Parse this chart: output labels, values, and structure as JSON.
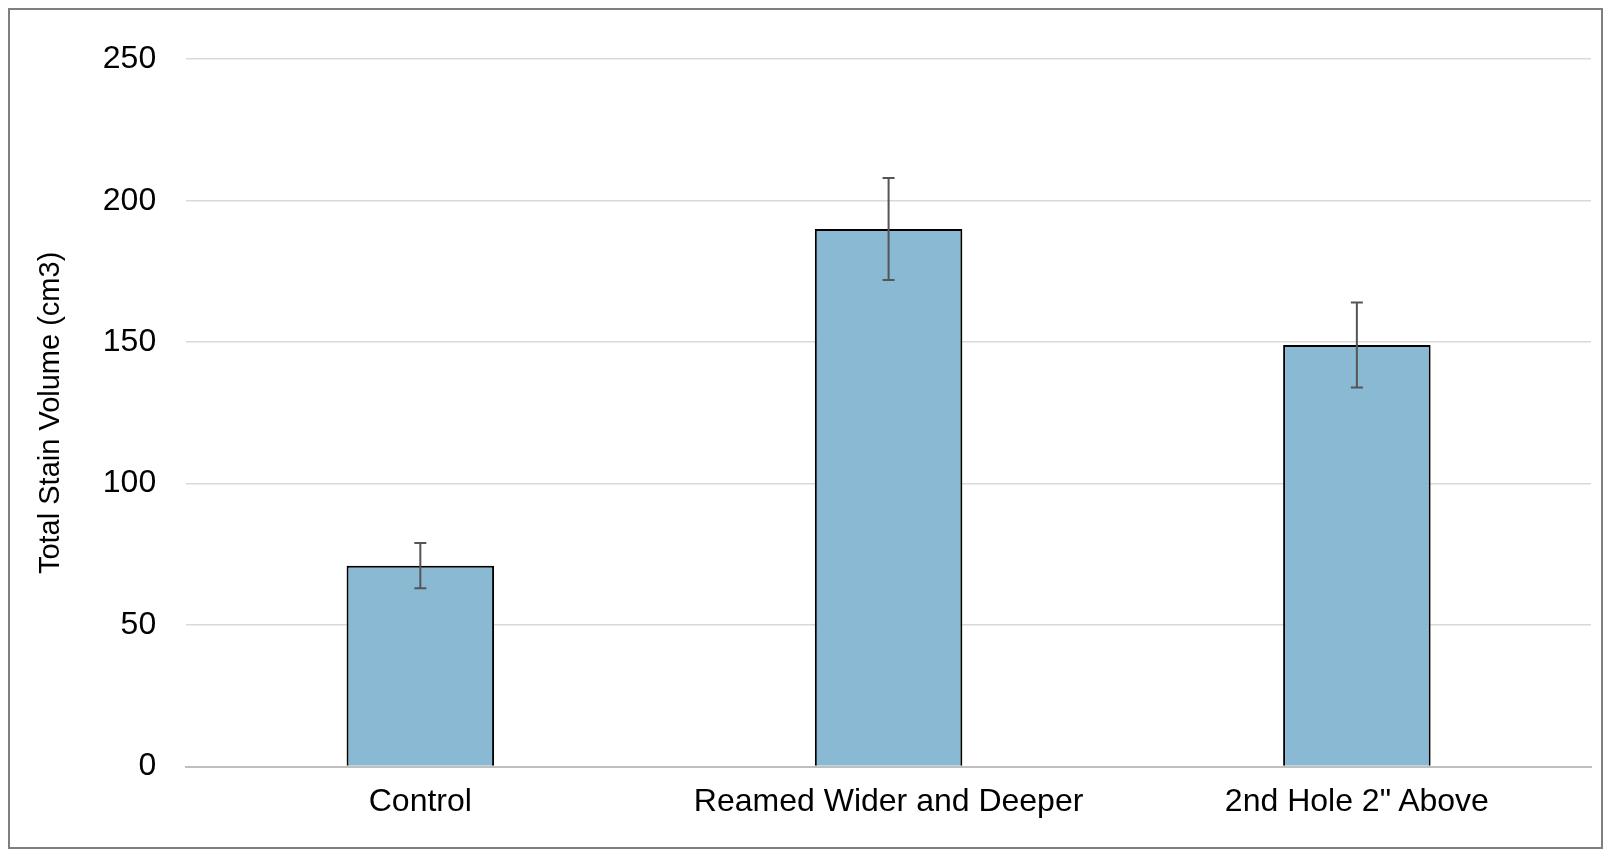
{
  "chart_data": {
    "type": "bar",
    "ylabel": "Total Stain Volume (cm3)",
    "categories": [
      "Control",
      "Reamed Wider and Deeper",
      "2nd Hole 2\" Above"
    ],
    "values": [
      71,
      190,
      149
    ],
    "errors": [
      8,
      18,
      15
    ],
    "color": "#8ab9d4",
    "ylim": [
      0,
      250
    ],
    "yticks": [
      0,
      50,
      100,
      150,
      200,
      250
    ],
    "grid": "y"
  }
}
